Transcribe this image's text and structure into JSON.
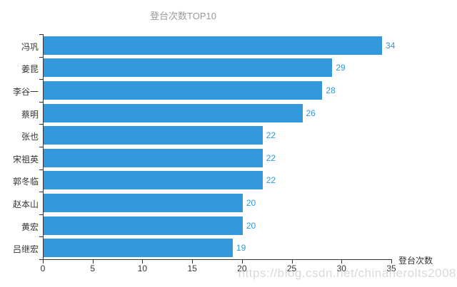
{
  "chart_data": {
    "type": "bar",
    "orientation": "horizontal",
    "title": "登台次数TOP10",
    "categories": [
      "冯巩",
      "姜昆",
      "李谷一",
      "蔡明",
      "张也",
      "宋祖英",
      "郭冬临",
      "赵本山",
      "黄宏",
      "吕继宏"
    ],
    "values": [
      34,
      29,
      28,
      26,
      22,
      22,
      22,
      20,
      20,
      19
    ],
    "xlabel": "登台次数",
    "ylabel": "",
    "xlim": [
      0,
      35
    ],
    "x_ticks": [
      0,
      5,
      10,
      15,
      20,
      25,
      30,
      35
    ],
    "grid": false,
    "legend": "none",
    "value_labels_shown": true
  },
  "colors": {
    "bar": "#3398DB",
    "value_label": "#3398DB",
    "title": "#999999",
    "axis": "#333333",
    "tick_label": "#333333",
    "watermark": "#bbbbbb"
  },
  "watermark": {
    "text": "https://blog.csdn.net/chinaherolts2008"
  }
}
